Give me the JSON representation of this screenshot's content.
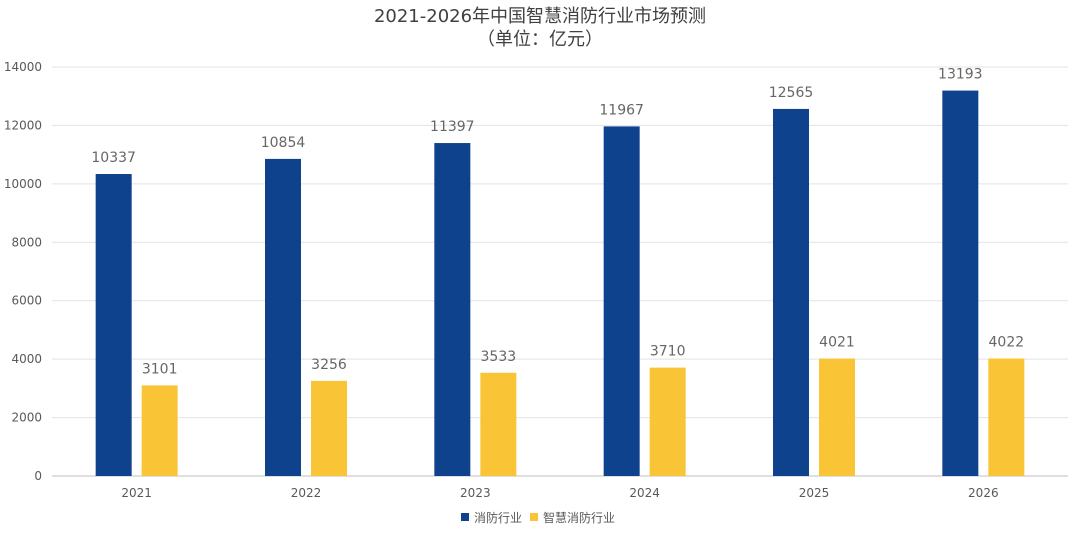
{
  "chart_data": {
    "type": "bar",
    "title": "2021-2026年中国智慧消防行业市场预测",
    "subtitle": "（单位：亿元）",
    "categories": [
      "2021",
      "2022",
      "2023",
      "2024",
      "2025",
      "2026"
    ],
    "series": [
      {
        "name": "消防行业",
        "color": "#0e428c",
        "values": [
          10337,
          10854,
          11397,
          11967,
          12565,
          13193
        ]
      },
      {
        "name": "智慧消防行业",
        "color": "#f9c435",
        "values": [
          3101,
          3256,
          3533,
          3710,
          4021,
          4022
        ]
      }
    ],
    "ylim": [
      0,
      14000
    ],
    "yticks": [
      "0",
      "2000",
      "4000",
      "6000",
      "8000",
      "10000",
      "12000",
      "14000"
    ],
    "grid": true,
    "legend_position": "bottom-center",
    "xlabel": "",
    "ylabel": ""
  }
}
